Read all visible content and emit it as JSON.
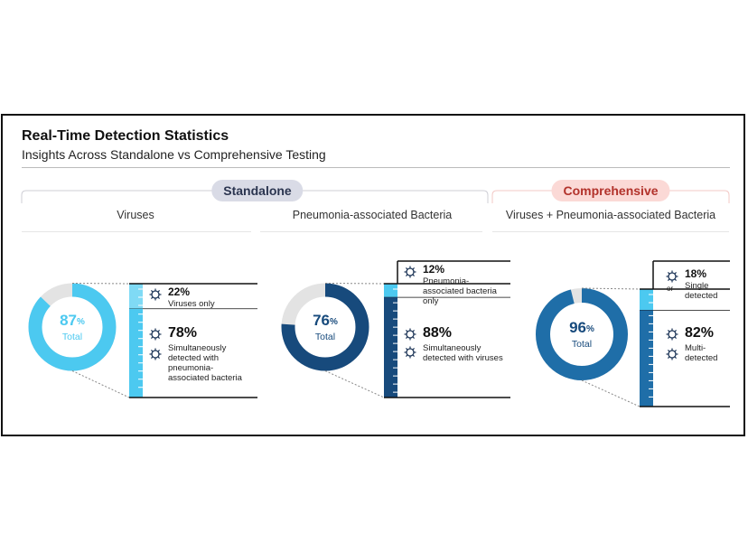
{
  "header": {
    "title": "Real-Time Detection Statistics",
    "subtitle": "Insights Across Standalone vs Comprehensive Testing"
  },
  "groups": [
    {
      "label": "Standalone"
    },
    {
      "label": "Comprehensive"
    }
  ],
  "panels": [
    {
      "heading": "Viruses",
      "total": {
        "value": 87,
        "unit": "%",
        "label": "Total"
      },
      "color": "#4cc9f0",
      "breakdown": [
        {
          "value": 22,
          "label": "22%",
          "text": "Viruses only"
        },
        {
          "value": 78,
          "label": "78%",
          "text": "Simultaneously detected with pneumonia-associated bacteria"
        }
      ]
    },
    {
      "heading": "Pneumonia-associated Bacteria",
      "total": {
        "value": 76,
        "unit": "%",
        "label": "Total"
      },
      "color": "#174a7c",
      "breakdown": [
        {
          "value": 12,
          "label": "12%",
          "text": "Pneumonia-associated bacteria only"
        },
        {
          "value": 88,
          "label": "88%",
          "text": "Simultaneously detected with viruses"
        }
      ]
    },
    {
      "heading": "Viruses + Pneumonia-associated Bacteria",
      "total": {
        "value": 96,
        "unit": "%",
        "label": "Total"
      },
      "color": "#1f6ea8",
      "breakdown": [
        {
          "value": 18,
          "label": "18%",
          "text": "Single detected",
          "or": "or"
        },
        {
          "value": 82,
          "label": "82%",
          "text": "Multi-detected"
        }
      ]
    }
  ]
}
